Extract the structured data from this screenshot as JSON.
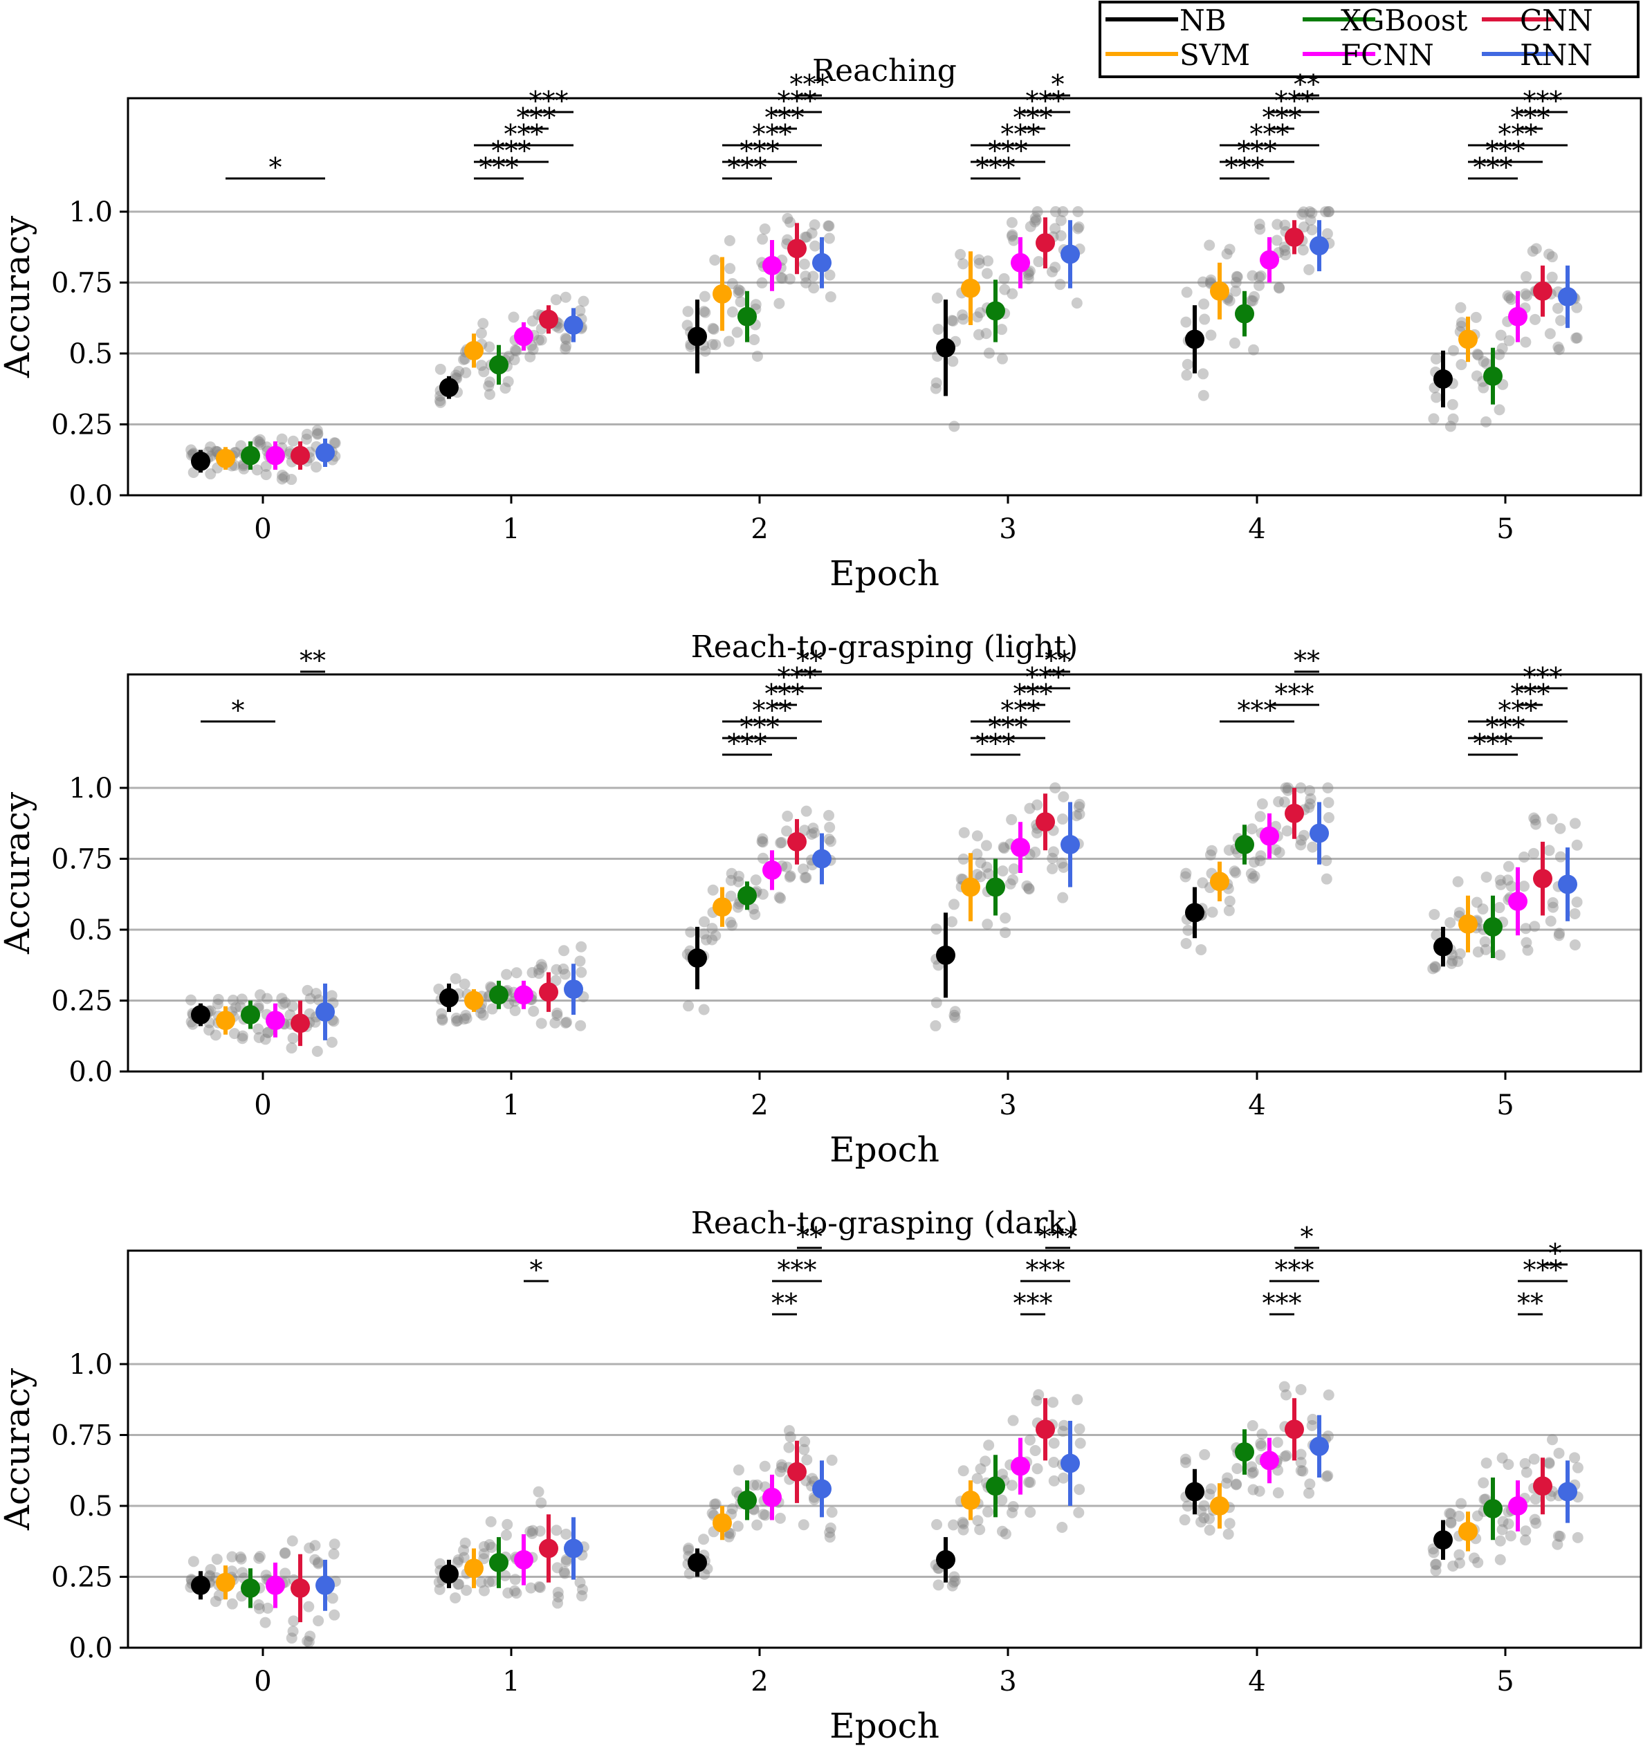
{
  "legend": {
    "position": "top-right",
    "entries": [
      {
        "name": "NB",
        "color": "#000000"
      },
      {
        "name": "XGBoost",
        "color": "#0a7d0a"
      },
      {
        "name": "CNN",
        "color": "#dc143c"
      },
      {
        "name": "SVM",
        "color": "#ffa500"
      },
      {
        "name": "FCNN",
        "color": "#ff00ff"
      },
      {
        "name": "RNN",
        "color": "#4169e1"
      }
    ]
  },
  "chart_data": [
    {
      "type": "scatter",
      "title": "Reaching",
      "xlabel": "Epoch",
      "ylabel": "Accuracy",
      "categories": [
        "0",
        "1",
        "2",
        "3",
        "4",
        "5"
      ],
      "ylim": [
        0,
        1.4
      ],
      "yticks": [
        "0.0",
        "0.25",
        "0.5",
        "0.75",
        "1.0"
      ],
      "grid": "horizontal",
      "series": [
        {
          "name": "NB",
          "values": [
            0.12,
            0.38,
            0.56,
            0.52,
            0.55,
            0.41
          ],
          "spread": [
            0.04,
            0.04,
            0.13,
            0.17,
            0.12,
            0.1
          ]
        },
        {
          "name": "SVM",
          "values": [
            0.13,
            0.51,
            0.71,
            0.73,
            0.72,
            0.55
          ],
          "spread": [
            0.04,
            0.06,
            0.13,
            0.13,
            0.1,
            0.08
          ]
        },
        {
          "name": "XGBoost",
          "values": [
            0.14,
            0.46,
            0.63,
            0.65,
            0.64,
            0.42
          ],
          "spread": [
            0.05,
            0.07,
            0.09,
            0.11,
            0.08,
            0.1
          ]
        },
        {
          "name": "FCNN",
          "values": [
            0.14,
            0.56,
            0.81,
            0.82,
            0.83,
            0.63
          ],
          "spread": [
            0.05,
            0.05,
            0.09,
            0.09,
            0.08,
            0.09
          ]
        },
        {
          "name": "CNN",
          "values": [
            0.14,
            0.62,
            0.87,
            0.89,
            0.91,
            0.72
          ],
          "spread": [
            0.05,
            0.05,
            0.09,
            0.09,
            0.06,
            0.09
          ]
        },
        {
          "name": "RNN",
          "values": [
            0.15,
            0.6,
            0.82,
            0.85,
            0.88,
            0.7
          ],
          "spread": [
            0.05,
            0.06,
            0.09,
            0.12,
            0.09,
            0.11
          ]
        }
      ],
      "significance": [
        {
          "epoch": 0,
          "from": 1,
          "to": 5,
          "level": 1,
          "label": "*"
        },
        {
          "epoch": 1,
          "from": 1,
          "to": 3,
          "level": 1,
          "label": "***"
        },
        {
          "epoch": 1,
          "from": 1,
          "to": 4,
          "level": 2,
          "label": "***"
        },
        {
          "epoch": 1,
          "from": 1,
          "to": 5,
          "level": 3,
          "label": "***"
        },
        {
          "epoch": 1,
          "from": 3,
          "to": 4,
          "level": 4,
          "label": "***"
        },
        {
          "epoch": 1,
          "from": 3,
          "to": 5,
          "level": 5,
          "label": "***"
        },
        {
          "epoch": 2,
          "from": 1,
          "to": 3,
          "level": 1,
          "label": "***"
        },
        {
          "epoch": 2,
          "from": 1,
          "to": 4,
          "level": 2,
          "label": "***"
        },
        {
          "epoch": 2,
          "from": 1,
          "to": 5,
          "level": 3,
          "label": "***"
        },
        {
          "epoch": 2,
          "from": 3,
          "to": 4,
          "level": 4,
          "label": "***"
        },
        {
          "epoch": 2,
          "from": 3,
          "to": 5,
          "level": 5,
          "label": "***"
        },
        {
          "epoch": 2,
          "from": 4,
          "to": 5,
          "level": 6,
          "label": "***"
        },
        {
          "epoch": 3,
          "from": 1,
          "to": 3,
          "level": 1,
          "label": "***"
        },
        {
          "epoch": 3,
          "from": 1,
          "to": 4,
          "level": 2,
          "label": "***"
        },
        {
          "epoch": 3,
          "from": 1,
          "to": 5,
          "level": 3,
          "label": "***"
        },
        {
          "epoch": 3,
          "from": 3,
          "to": 4,
          "level": 4,
          "label": "***"
        },
        {
          "epoch": 3,
          "from": 3,
          "to": 5,
          "level": 5,
          "label": "***"
        },
        {
          "epoch": 3,
          "from": 4,
          "to": 5,
          "level": 6,
          "label": "*"
        },
        {
          "epoch": 4,
          "from": 1,
          "to": 3,
          "level": 1,
          "label": "***"
        },
        {
          "epoch": 4,
          "from": 1,
          "to": 4,
          "level": 2,
          "label": "***"
        },
        {
          "epoch": 4,
          "from": 1,
          "to": 5,
          "level": 3,
          "label": "***"
        },
        {
          "epoch": 4,
          "from": 3,
          "to": 4,
          "level": 4,
          "label": "***"
        },
        {
          "epoch": 4,
          "from": 3,
          "to": 5,
          "level": 5,
          "label": "***"
        },
        {
          "epoch": 4,
          "from": 4,
          "to": 5,
          "level": 6,
          "label": "**"
        },
        {
          "epoch": 5,
          "from": 1,
          "to": 3,
          "level": 1,
          "label": "***"
        },
        {
          "epoch": 5,
          "from": 1,
          "to": 4,
          "level": 2,
          "label": "***"
        },
        {
          "epoch": 5,
          "from": 1,
          "to": 5,
          "level": 3,
          "label": "***"
        },
        {
          "epoch": 5,
          "from": 3,
          "to": 4,
          "level": 4,
          "label": "***"
        },
        {
          "epoch": 5,
          "from": 3,
          "to": 5,
          "level": 5,
          "label": "***"
        }
      ]
    },
    {
      "type": "scatter",
      "title": "Reach-to-grasping (light)",
      "xlabel": "Epoch",
      "ylabel": "Accuracy",
      "categories": [
        "0",
        "1",
        "2",
        "3",
        "4",
        "5"
      ],
      "ylim": [
        0,
        1.4
      ],
      "yticks": [
        "0.0",
        "0.25",
        "0.5",
        "0.75",
        "1.0"
      ],
      "grid": "horizontal",
      "series": [
        {
          "name": "NB",
          "values": [
            0.2,
            0.26,
            0.4,
            0.41,
            0.56,
            0.44
          ],
          "spread": [
            0.04,
            0.05,
            0.11,
            0.15,
            0.09,
            0.07
          ]
        },
        {
          "name": "SVM",
          "values": [
            0.18,
            0.25,
            0.58,
            0.65,
            0.67,
            0.52
          ],
          "spread": [
            0.05,
            0.04,
            0.07,
            0.12,
            0.07,
            0.1
          ]
        },
        {
          "name": "XGBoost",
          "values": [
            0.2,
            0.27,
            0.62,
            0.65,
            0.8,
            0.51
          ],
          "spread": [
            0.05,
            0.05,
            0.05,
            0.1,
            0.07,
            0.11
          ]
        },
        {
          "name": "FCNN",
          "values": [
            0.18,
            0.27,
            0.71,
            0.79,
            0.83,
            0.6
          ],
          "spread": [
            0.06,
            0.05,
            0.07,
            0.09,
            0.08,
            0.12
          ]
        },
        {
          "name": "CNN",
          "values": [
            0.17,
            0.28,
            0.81,
            0.88,
            0.91,
            0.68
          ],
          "spread": [
            0.08,
            0.07,
            0.08,
            0.1,
            0.09,
            0.13
          ]
        },
        {
          "name": "RNN",
          "values": [
            0.21,
            0.29,
            0.75,
            0.8,
            0.84,
            0.66
          ],
          "spread": [
            0.1,
            0.09,
            0.09,
            0.15,
            0.11,
            0.13
          ]
        }
      ],
      "significance": [
        {
          "epoch": 0,
          "from": 0,
          "to": 3,
          "level": 3,
          "label": "*"
        },
        {
          "epoch": 0,
          "from": 4,
          "to": 5,
          "level": 6,
          "label": "**"
        },
        {
          "epoch": 2,
          "from": 1,
          "to": 3,
          "level": 1,
          "label": "***"
        },
        {
          "epoch": 2,
          "from": 1,
          "to": 4,
          "level": 2,
          "label": "***"
        },
        {
          "epoch": 2,
          "from": 1,
          "to": 5,
          "level": 3,
          "label": "***"
        },
        {
          "epoch": 2,
          "from": 3,
          "to": 4,
          "level": 4,
          "label": "***"
        },
        {
          "epoch": 2,
          "from": 3,
          "to": 5,
          "level": 5,
          "label": "***"
        },
        {
          "epoch": 2,
          "from": 4,
          "to": 5,
          "level": 6,
          "label": "**"
        },
        {
          "epoch": 3,
          "from": 1,
          "to": 3,
          "level": 1,
          "label": "***"
        },
        {
          "epoch": 3,
          "from": 1,
          "to": 4,
          "level": 2,
          "label": "***"
        },
        {
          "epoch": 3,
          "from": 1,
          "to": 5,
          "level": 3,
          "label": "***"
        },
        {
          "epoch": 3,
          "from": 3,
          "to": 4,
          "level": 4,
          "label": "***"
        },
        {
          "epoch": 3,
          "from": 3,
          "to": 5,
          "level": 5,
          "label": "***"
        },
        {
          "epoch": 3,
          "from": 4,
          "to": 5,
          "level": 6,
          "label": "**"
        },
        {
          "epoch": 4,
          "from": 1,
          "to": 4,
          "level": 3,
          "label": "***"
        },
        {
          "epoch": 4,
          "from": 3,
          "to": 5,
          "level": 4,
          "label": "***"
        },
        {
          "epoch": 4,
          "from": 4,
          "to": 5,
          "level": 6,
          "label": "**"
        },
        {
          "epoch": 5,
          "from": 1,
          "to": 3,
          "level": 1,
          "label": "***"
        },
        {
          "epoch": 5,
          "from": 1,
          "to": 4,
          "level": 2,
          "label": "***"
        },
        {
          "epoch": 5,
          "from": 1,
          "to": 5,
          "level": 3,
          "label": "***"
        },
        {
          "epoch": 5,
          "from": 3,
          "to": 4,
          "level": 4,
          "label": "***"
        },
        {
          "epoch": 5,
          "from": 3,
          "to": 5,
          "level": 5,
          "label": "***"
        }
      ]
    },
    {
      "type": "scatter",
      "title": "Reach-to-grasping (dark)",
      "xlabel": "Epoch",
      "ylabel": "Accuracy",
      "categories": [
        "0",
        "1",
        "2",
        "3",
        "4",
        "5"
      ],
      "ylim": [
        0,
        1.4
      ],
      "yticks": [
        "0.0",
        "0.25",
        "0.5",
        "0.75",
        "1.0"
      ],
      "grid": "horizontal",
      "series": [
        {
          "name": "NB",
          "values": [
            0.22,
            0.26,
            0.3,
            0.31,
            0.55,
            0.38
          ],
          "spread": [
            0.05,
            0.05,
            0.05,
            0.08,
            0.08,
            0.07
          ]
        },
        {
          "name": "SVM",
          "values": [
            0.23,
            0.28,
            0.44,
            0.52,
            0.5,
            0.41
          ],
          "spread": [
            0.06,
            0.07,
            0.06,
            0.07,
            0.08,
            0.07
          ]
        },
        {
          "name": "XGBoost",
          "values": [
            0.21,
            0.3,
            0.52,
            0.57,
            0.69,
            0.49
          ],
          "spread": [
            0.07,
            0.09,
            0.07,
            0.11,
            0.08,
            0.11
          ]
        },
        {
          "name": "FCNN",
          "values": [
            0.22,
            0.31,
            0.53,
            0.64,
            0.66,
            0.5
          ],
          "spread": [
            0.08,
            0.09,
            0.08,
            0.1,
            0.08,
            0.09
          ]
        },
        {
          "name": "CNN",
          "values": [
            0.21,
            0.35,
            0.62,
            0.77,
            0.77,
            0.57
          ],
          "spread": [
            0.12,
            0.12,
            0.11,
            0.11,
            0.11,
            0.1
          ]
        },
        {
          "name": "RNN",
          "values": [
            0.22,
            0.35,
            0.56,
            0.65,
            0.71,
            0.55
          ],
          "spread": [
            0.09,
            0.11,
            0.1,
            0.15,
            0.11,
            0.11
          ]
        }
      ],
      "significance": [
        {
          "epoch": 1,
          "from": 3,
          "to": 4,
          "level": 4,
          "label": "*"
        },
        {
          "epoch": 2,
          "from": 3,
          "to": 4,
          "level": 2,
          "label": "**"
        },
        {
          "epoch": 2,
          "from": 3,
          "to": 5,
          "level": 4,
          "label": "***"
        },
        {
          "epoch": 2,
          "from": 4,
          "to": 5,
          "level": 6,
          "label": "**"
        },
        {
          "epoch": 3,
          "from": 3,
          "to": 4,
          "level": 2,
          "label": "***"
        },
        {
          "epoch": 3,
          "from": 3,
          "to": 5,
          "level": 4,
          "label": "***"
        },
        {
          "epoch": 3,
          "from": 4,
          "to": 5,
          "level": 6,
          "label": "***"
        },
        {
          "epoch": 4,
          "from": 3,
          "to": 4,
          "level": 2,
          "label": "***"
        },
        {
          "epoch": 4,
          "from": 3,
          "to": 5,
          "level": 4,
          "label": "***"
        },
        {
          "epoch": 4,
          "from": 4,
          "to": 5,
          "level": 6,
          "label": "*"
        },
        {
          "epoch": 5,
          "from": 3,
          "to": 4,
          "level": 2,
          "label": "**"
        },
        {
          "epoch": 5,
          "from": 3,
          "to": 5,
          "level": 4,
          "label": "***"
        },
        {
          "epoch": 5,
          "from": 4,
          "to": 5,
          "level": 5,
          "label": "*"
        }
      ]
    }
  ]
}
